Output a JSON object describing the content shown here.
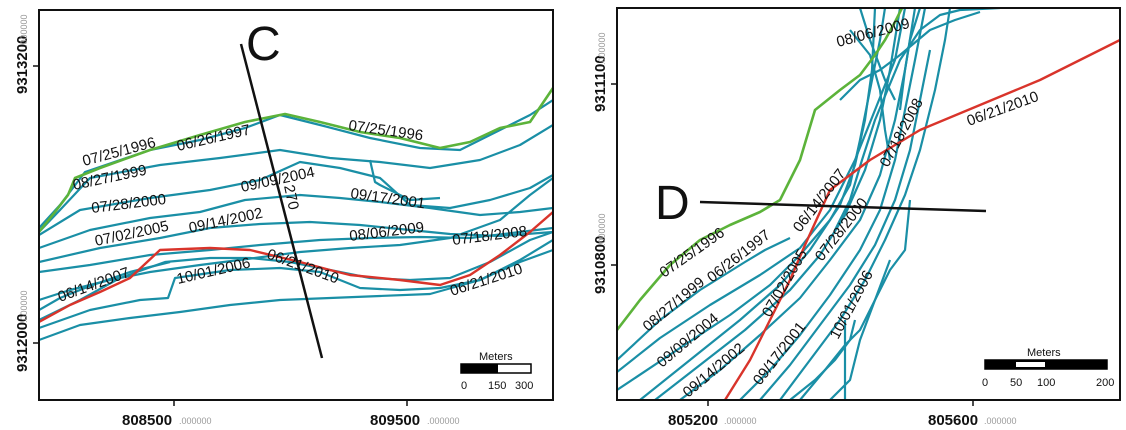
{
  "panels": [
    {
      "id": "left",
      "section_label": "C",
      "transect_label": "270",
      "y_ticks": [
        {
          "value": "9313200",
          "suffix": ".000000"
        },
        {
          "value": "9312000",
          "suffix": ".000000"
        }
      ],
      "x_ticks": [
        {
          "value": "808500",
          "suffix": ".000000"
        },
        {
          "value": "809500",
          "suffix": ".000000"
        }
      ],
      "date_labels": [
        "07/25/1996",
        "06/26/1997",
        "07/25/1996",
        "08/27/1999",
        "07/28/2000",
        "09/09/2004",
        "09/17/2001",
        "07/02/2005",
        "09/14/2002",
        "08/06/2009",
        "07/18/2008",
        "06/14/2007",
        "10/01/2006",
        "06/21/2010",
        "06/21/2010"
      ],
      "scale_bar": {
        "title": "Meters",
        "ticks": [
          "0",
          "150",
          "300"
        ]
      }
    },
    {
      "id": "right",
      "section_label": "D",
      "y_ticks": [
        {
          "value": "9311100",
          "suffix": ".000000"
        },
        {
          "value": "9310800",
          "suffix": ".000000"
        }
      ],
      "x_ticks": [
        {
          "value": "805200",
          "suffix": ".000000"
        },
        {
          "value": "805600",
          "suffix": ".000000"
        }
      ],
      "date_labels": [
        "08/06/2009",
        "06/21/2010",
        "07/18/2008",
        "06/14/2007",
        "07/25/1996",
        "06/26/1997",
        "07/28/2000",
        "07/02/2005",
        "08/27/1999",
        "10/01/2006",
        "09/09/2004",
        "09/17/2001",
        "09/14/2002"
      ],
      "scale_bar": {
        "title": "Meters",
        "ticks": [
          "0",
          "50",
          "100",
          "200"
        ]
      }
    }
  ],
  "legend_colors": {
    "shoreline": "#1a8fa6",
    "earliest_1996": "#5cb33a",
    "latest_2010": "#d9342b"
  }
}
